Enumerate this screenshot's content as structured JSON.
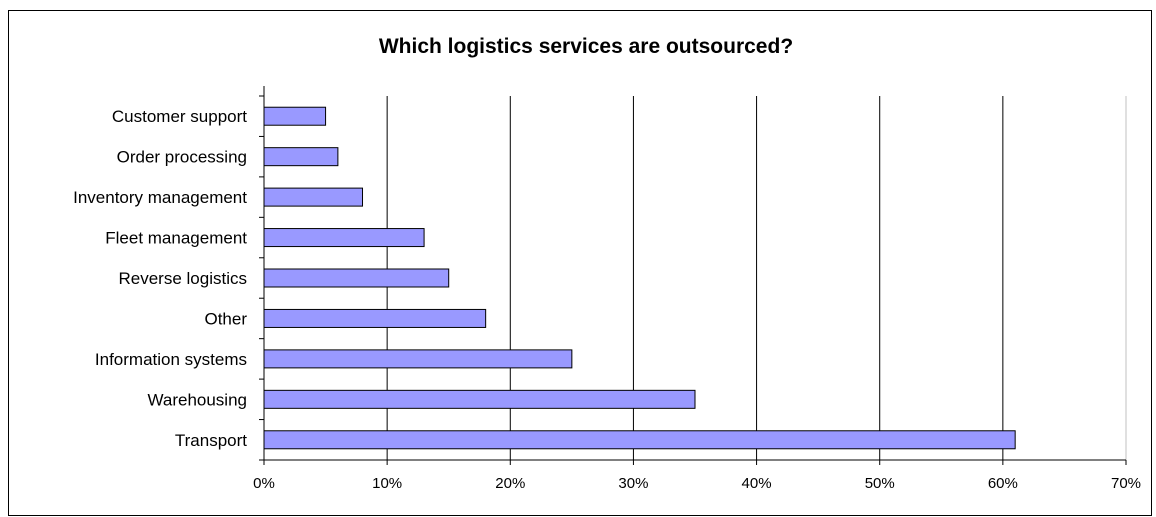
{
  "chart_data": {
    "type": "bar",
    "orientation": "horizontal",
    "title": "Which logistics services are outsourced?",
    "xlabel": "",
    "ylabel": "",
    "categories": [
      "Customer support",
      "Order processing",
      "Inventory management",
      "Fleet management",
      "Reverse logistics",
      "Other",
      "Information systems",
      "Warehousing",
      "Transport"
    ],
    "values": [
      5,
      6,
      8,
      13,
      15,
      18,
      25,
      35,
      61
    ],
    "xlim": [
      0,
      70
    ],
    "ticks": [
      "0%",
      "10%",
      "20%",
      "30%",
      "40%",
      "50%",
      "60%",
      "70%"
    ],
    "grid": "vertical",
    "bar_color": "#9999ff",
    "bar_edge_color": "#000000",
    "legend": "none"
  }
}
